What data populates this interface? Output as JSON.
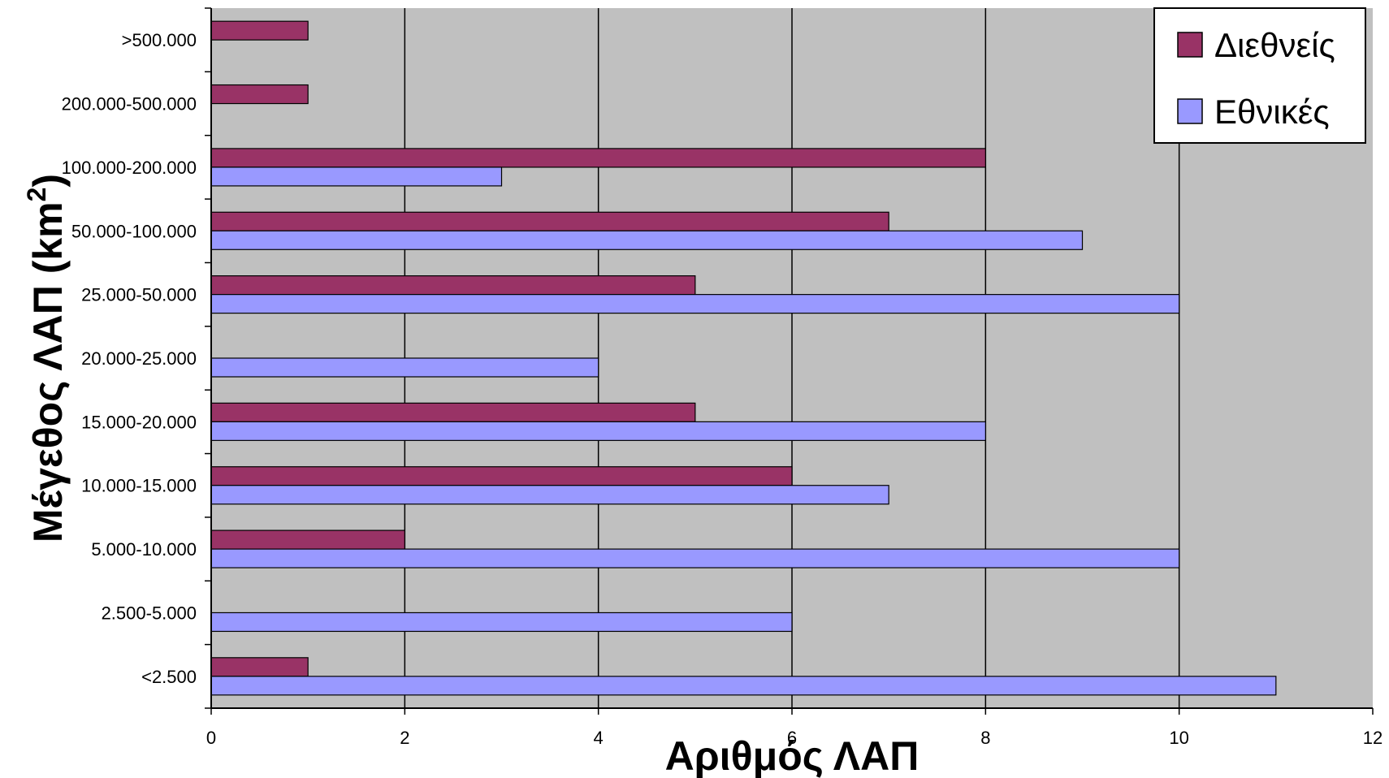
{
  "chart_data": {
    "type": "bar",
    "orientation": "horizontal",
    "title": "",
    "xlabel": "Αριθμός ΛΑΠ",
    "ylabel_main": "Μέγεθος ΛΑΠ (km",
    "ylabel_sup": "2",
    "ylabel_close": ")",
    "xlim": [
      0,
      12
    ],
    "x_ticks": [
      "0",
      "2",
      "4",
      "6",
      "8",
      "10",
      "12"
    ],
    "grid": "vertical",
    "legend_position": "top-right",
    "categories": [
      ">500.000",
      "200.000-500.000",
      "100.000-200.000",
      "50.000-100.000",
      "25.000-50.000",
      "20.000-25.000",
      "15.000-20.000",
      "10.000-15.000",
      "5.000-10.000",
      "2.500-5.000",
      "<2.500"
    ],
    "series": [
      {
        "name": "Διεθνείς",
        "color": "#993366",
        "values": [
          1,
          1,
          8,
          7,
          5,
          0,
          5,
          6,
          2,
          0,
          1
        ]
      },
      {
        "name": "Εθνικές",
        "color": "#9999ff",
        "values": [
          0,
          0,
          3,
          9,
          10,
          4,
          8,
          7,
          10,
          6,
          11
        ]
      }
    ],
    "plot_background": "#c0c0c0"
  }
}
